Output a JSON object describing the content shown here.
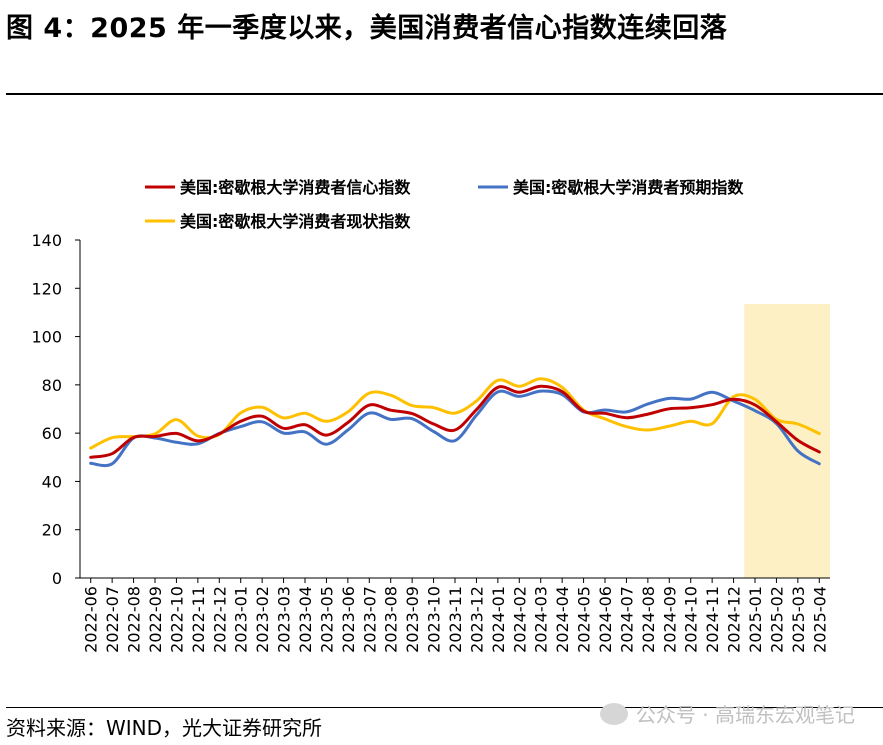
{
  "page": {
    "title": "图 4：2025 年一季度以来，美国消费者信心指数连续回落",
    "source": "资料来源：WIND，光大证券研究所",
    "watermark": "公众号 · 高瑞东宏观笔记"
  },
  "chart_data": {
    "type": "line",
    "title": "",
    "xlabel": "",
    "ylabel": "",
    "ylim": [
      0,
      140
    ],
    "yticks": [
      0,
      20,
      40,
      60,
      80,
      100,
      120,
      140
    ],
    "grid": false,
    "legend_position": "top",
    "x": [
      "2022-06",
      "2022-07",
      "2022-08",
      "2022-09",
      "2022-10",
      "2022-11",
      "2022-12",
      "2023-01",
      "2023-02",
      "2023-03",
      "2023-04",
      "2023-05",
      "2023-06",
      "2023-07",
      "2023-08",
      "2023-09",
      "2023-10",
      "2023-11",
      "2023-12",
      "2024-01",
      "2024-02",
      "2024-03",
      "2024-04",
      "2024-05",
      "2024-06",
      "2024-07",
      "2024-08",
      "2024-09",
      "2024-10",
      "2024-11",
      "2024-12",
      "2025-01",
      "2025-02",
      "2025-03",
      "2025-04"
    ],
    "highlight_range": [
      "2025-01",
      "2025-04"
    ],
    "highlight_color": "#fdf0c4",
    "series": [
      {
        "name": "美国:密歇根大学消费者信心指数",
        "color": "#c00000",
        "values": [
          50.0,
          51.5,
          58.2,
          58.6,
          59.9,
          56.8,
          59.7,
          64.9,
          67.0,
          62.0,
          63.5,
          59.2,
          64.4,
          71.6,
          69.5,
          68.1,
          63.8,
          61.3,
          69.7,
          79.0,
          76.9,
          79.4,
          77.2,
          69.1,
          68.2,
          66.4,
          67.9,
          70.1,
          70.5,
          71.8,
          74.0,
          71.7,
          64.7,
          57.0,
          52.2
        ]
      },
      {
        "name": "美国:密歇根大学消费者预期指数",
        "color": "#4472c4",
        "values": [
          47.5,
          47.3,
          58.0,
          58.0,
          56.2,
          55.6,
          59.9,
          62.7,
          64.7,
          60.0,
          60.5,
          55.4,
          61.3,
          68.3,
          65.7,
          66.0,
          60.7,
          56.9,
          67.4,
          77.1,
          75.2,
          77.4,
          76.0,
          68.8,
          69.6,
          68.8,
          72.1,
          74.4,
          74.1,
          76.9,
          73.3,
          69.3,
          64.0,
          52.6,
          47.3
        ]
      },
      {
        "name": "美国:密歇根大学消费者现状指数",
        "color": "#ffc000",
        "values": [
          53.8,
          58.1,
          58.6,
          59.7,
          65.6,
          58.8,
          59.4,
          68.4,
          70.7,
          66.3,
          68.2,
          64.9,
          68.8,
          76.6,
          75.7,
          71.4,
          70.6,
          68.3,
          73.3,
          81.9,
          79.4,
          82.5,
          79.0,
          69.6,
          65.9,
          62.7,
          61.3,
          62.9,
          64.9,
          63.9,
          75.1,
          74.0,
          65.7,
          63.8,
          59.8
        ]
      }
    ]
  }
}
